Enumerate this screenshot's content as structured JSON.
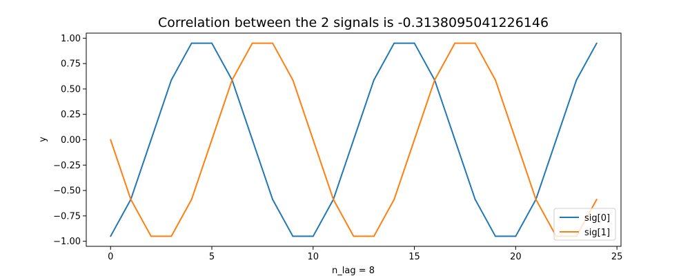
{
  "chart_data": {
    "type": "line",
    "title": "Correlation between the 2 signals is -0.3138095041226146",
    "xlabel": "n_lag = 8",
    "ylabel": "y",
    "xlim": [
      -1.2,
      25.2
    ],
    "ylim": [
      -1.05,
      1.05
    ],
    "x_ticks": [
      0,
      5,
      10,
      15,
      20,
      25
    ],
    "x_tick_labels": [
      "0",
      "5",
      "10",
      "15",
      "20",
      "25"
    ],
    "y_ticks": [
      1.0,
      0.75,
      0.5,
      0.25,
      0.0,
      -0.25,
      -0.5,
      -0.75,
      -1.0
    ],
    "y_tick_labels": [
      "1.00",
      "0.75",
      "0.50",
      "0.25",
      "0.00",
      "−0.25",
      "−0.50",
      "−0.75",
      "−1.00"
    ],
    "grid": false,
    "legend_position": "lower-right",
    "x": [
      0,
      1,
      2,
      3,
      4,
      5,
      6,
      7,
      8,
      9,
      10,
      11,
      12,
      13,
      14,
      15,
      16,
      17,
      18,
      19,
      20,
      21,
      22,
      23,
      24
    ],
    "series": [
      {
        "name": "sig[0]",
        "color": "#1f77b4",
        "values": [
          -0.951,
          -0.588,
          0.0,
          0.588,
          0.951,
          0.951,
          0.588,
          0.0,
          -0.588,
          -0.951,
          -0.951,
          -0.588,
          0.0,
          0.588,
          0.951,
          0.951,
          0.588,
          0.0,
          -0.588,
          -0.951,
          -0.951,
          -0.588,
          0.0,
          0.588,
          0.951
        ]
      },
      {
        "name": "sig[1]",
        "color": "#ff7f0e",
        "values": [
          0.0,
          -0.588,
          -0.951,
          -0.951,
          -0.588,
          0.0,
          0.588,
          0.951,
          0.951,
          0.588,
          0.0,
          -0.588,
          -0.951,
          -0.951,
          -0.588,
          0.0,
          0.588,
          0.951,
          0.951,
          0.588,
          0.0,
          -0.588,
          -0.951,
          -0.951,
          -0.588
        ]
      }
    ]
  }
}
